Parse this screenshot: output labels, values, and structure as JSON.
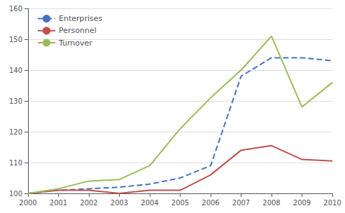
{
  "chart_data": {
    "type": "line",
    "x": [
      2000,
      2001,
      2002,
      2003,
      2004,
      2005,
      2006,
      2007,
      2008,
      2009,
      2010
    ],
    "series": [
      {
        "name": "Enterprises",
        "color": "#4472C4",
        "line_style": "dashed",
        "values": [
          100,
          101,
          101.5,
          102,
          103,
          105,
          109,
          138,
          144,
          144,
          143
        ]
      },
      {
        "name": "Personnel",
        "color": "#C0504D",
        "line_style": "solid",
        "values": [
          100,
          101,
          101,
          100,
          101,
          101,
          106,
          114,
          115.5,
          111,
          110.5
        ]
      },
      {
        "name": "Turnover",
        "color": "#9BBB59",
        "line_style": "solid",
        "values": [
          100,
          101.5,
          104,
          104.5,
          109,
          121,
          131,
          140,
          151,
          128,
          136
        ]
      }
    ],
    "xlim": [
      2000,
      2010
    ],
    "xticks": [
      2000,
      2001,
      2002,
      2003,
      2004,
      2005,
      2006,
      2007,
      2008,
      2009,
      2010
    ],
    "ylim": [
      100,
      160
    ],
    "yticks": [
      100,
      110,
      120,
      130,
      140,
      150,
      160
    ],
    "grid": true,
    "legend": "upper left"
  }
}
